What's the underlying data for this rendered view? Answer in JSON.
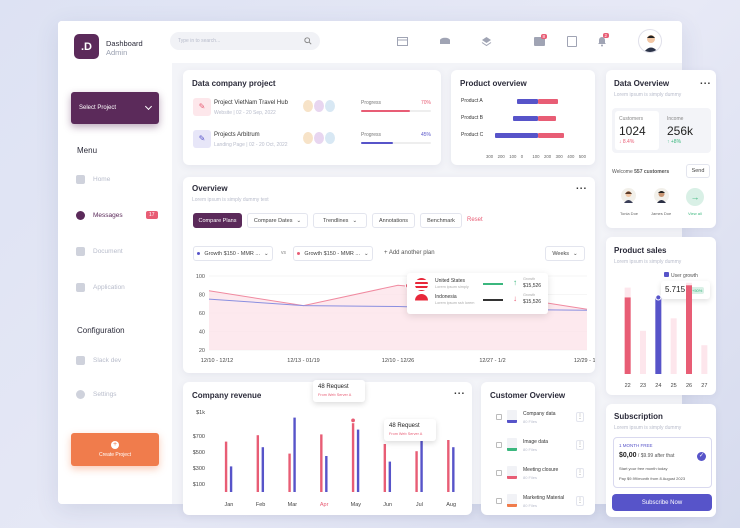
{
  "colors": {
    "primary": "#5b2a5a",
    "accent": "#e85d75",
    "blue": "#5754c9",
    "orange": "#f07c4c",
    "green": "#3bb77e"
  },
  "brand": {
    "letter": ".D",
    "title": "Dashboard",
    "subtitle": "Admin"
  },
  "search": {
    "placeholder": "Type in to search..."
  },
  "topbar": {
    "mail_badge": "8",
    "bell_badge": "2"
  },
  "sidebar": {
    "select_project": "Select Project",
    "menu_heading": "Menu",
    "items": [
      {
        "label": "Home",
        "icon": "home-icon"
      },
      {
        "label": "Messages",
        "icon": "message-icon",
        "badge": "17"
      },
      {
        "label": "Document",
        "icon": "document-icon"
      },
      {
        "label": "Application",
        "icon": "grid-icon"
      }
    ],
    "config_heading": "Configuration",
    "config_items": [
      {
        "label": "Slack dev",
        "icon": "slack-icon"
      },
      {
        "label": "Settings",
        "icon": "gear-icon"
      }
    ],
    "create_project": "Create Project"
  },
  "data_company": {
    "title": "Data company project",
    "projects": [
      {
        "name": "Project VietNam Travel Hub",
        "meta": "Website | 02 - 20 Sep, 2022",
        "progress_label": "Progress",
        "percent": "70%",
        "progress": 0.7
      },
      {
        "name": "Projects Arbitrum",
        "meta": "Landing Page | 02 - 20 Oct, 2022",
        "progress_label": "Progress",
        "percent": "45%",
        "progress": 0.45
      }
    ]
  },
  "product_overview": {
    "title": "Product overview",
    "chart_data": {
      "type": "bar",
      "orientation": "horizontal",
      "stacked": true,
      "categories": [
        "Product A",
        "Product B",
        "Product C"
      ],
      "series": [
        {
          "values": [
            190,
            220,
            380
          ]
        },
        {
          "values": [
            180,
            160,
            230
          ]
        }
      ],
      "xticks": [
        "300",
        "200",
        "100",
        "0",
        "100",
        "200",
        "300",
        "400",
        "500"
      ]
    }
  },
  "overview": {
    "title": "Overview",
    "subtitle": "Lorem ipsum is simply dummy text",
    "tabs": [
      "Compare Plans",
      "Compare Dates",
      "Trendlines",
      "Annotations",
      "Benchmark"
    ],
    "reset": "Reset",
    "plan_a": "Growth $150 - MMR ...",
    "vs": "vs",
    "plan_b": "Growth $150 - MMR ...",
    "add_plan": "Add another plan",
    "period": "Weeks",
    "tooltip": [
      {
        "country": "United States",
        "sub": "Lorem ipsum simply",
        "label": "Growth",
        "value": "$15,526",
        "dir": "up"
      },
      {
        "country": "Indonesia",
        "sub": "Lorem ipsum ssh lorem",
        "label": "Growth",
        "value": "$15,526",
        "dir": "down"
      }
    ],
    "chart_data": {
      "type": "line",
      "x": [
        "12/10 - 12/12",
        "12/13 - 01/19",
        "12/10 - 12/26",
        "12/27 - 1/2",
        "12/29 - 1/2"
      ],
      "yticks": [
        "100",
        "80",
        "60",
        "40",
        "20"
      ],
      "ylim": [
        20,
        100
      ],
      "series": [
        {
          "values": [
            84,
            68,
            90,
            80,
            64
          ]
        },
        {
          "values": [
            75,
            68,
            67,
            64,
            63
          ]
        }
      ]
    }
  },
  "company_revenue": {
    "title": "Company revenue",
    "tooltips": [
      {
        "title": "48 Request",
        "sub": "From Web Server A"
      },
      {
        "title": "48 Request",
        "sub": "From Web Server A"
      }
    ],
    "chart_data": {
      "type": "bar",
      "categories": [
        "Jan",
        "Feb",
        "Mar",
        "Apr",
        "May",
        "Jun",
        "Jul",
        "Aug"
      ],
      "yticks": [
        "$1k",
        "$700",
        "$500",
        "$300",
        "$100"
      ],
      "ylim": [
        0,
        1000
      ],
      "series": [
        {
          "values": [
            630,
            710,
            480,
            720,
            920,
            600,
            510,
            650
          ]
        },
        {
          "values": [
            320,
            560,
            930,
            450,
            780,
            380,
            780,
            560
          ]
        }
      ]
    }
  },
  "customer_overview": {
    "title": "Customer Overview",
    "files": [
      {
        "name": "Company data",
        "meta": "80 Files"
      },
      {
        "name": "Image data",
        "meta": "80 Files"
      },
      {
        "name": "Meeting closure",
        "meta": "80 Files"
      },
      {
        "name": "Marketing Material",
        "meta": "80 Files"
      }
    ]
  },
  "data_overview": {
    "title": "Data Overview",
    "subtitle": "Lorem ipsum is simply dummy",
    "customers_label": "Customers",
    "customers_value": "1024",
    "customers_change": "8.4%",
    "income_label": "Income",
    "income_value": "256k",
    "income_change": "+8%",
    "welcome": "Welcome",
    "welcome_count": "557 customers",
    "send": "Send",
    "people": [
      "Tonia Doe",
      "James Doe"
    ],
    "view_all": "View all"
  },
  "product_sales": {
    "title": "Product sales",
    "subtitle": "Lorem ipsum is simply dummy",
    "legend": "User growth",
    "value": "5.715",
    "badge": "+50%",
    "chart_data": {
      "type": "bar",
      "categories": [
        "22",
        "23",
        "24",
        "25",
        "26",
        "27"
      ],
      "series": [
        {
          "values": [
            0.55,
            0.3,
            0.55,
            0.45,
            0.56,
            0.3
          ]
        },
        {
          "values": [
            0.9,
            0.45,
            0.7,
            0.58,
            0.95,
            0.3
          ]
        }
      ]
    }
  },
  "subscription": {
    "title": "Subscription",
    "subtitle": "Lorem ipsum is simply dummy",
    "plan": "1 MONTH FREE",
    "price": "$0,00",
    "after": "/ $9.99 after that",
    "line1": "Start your free month today",
    "line2": "Pay $9.99/month from 8 August 2023",
    "button": "Subscribe Now"
  }
}
